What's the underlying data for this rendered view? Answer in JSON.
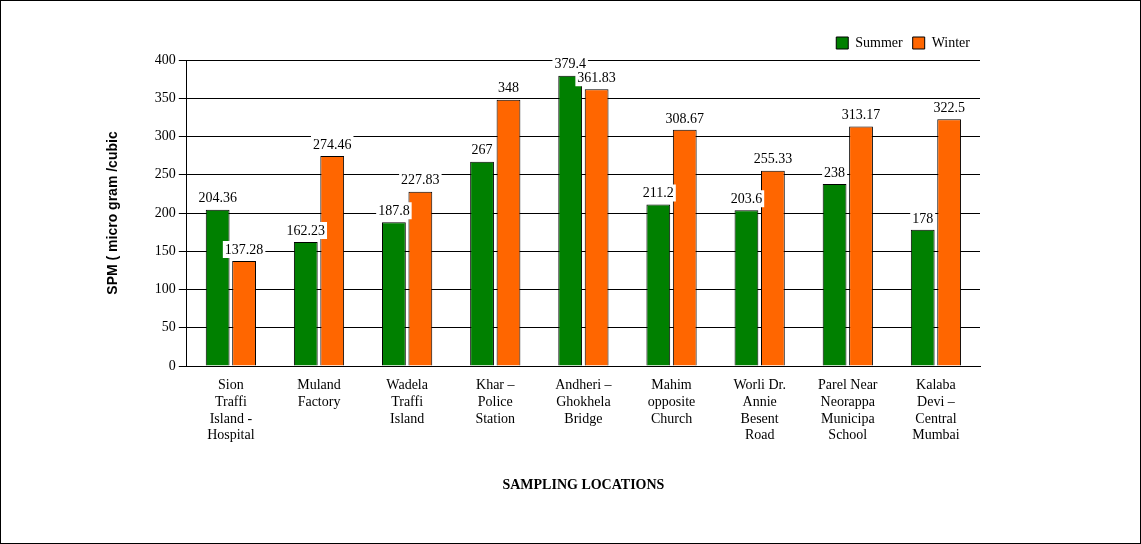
{
  "chart_data": {
    "type": "bar",
    "xlabel": "SAMPLING LOCATIONS",
    "ylabel": "SPM ( micro gram /cubic",
    "categories": [
      "Sion Traffi Island - Hospital",
      "Muland Factory",
      "Wadela Traffi Island",
      "Khar – Police Station",
      "Andheri – Ghokhela Bridge",
      "Mahim opposite Church",
      "Worli Dr. Annie Besent Road",
      "Parel Near Neorappa Municipa School",
      "Kalaba Devi – Central Mumbai"
    ],
    "series": [
      {
        "name": "Summer",
        "color": "#008000",
        "values": [
          204.36,
          162.23,
          187.8,
          267,
          379.4,
          211.2,
          203.6,
          238,
          178
        ]
      },
      {
        "name": "Winter",
        "color": "#ff6600",
        "values": [
          137.28,
          274.46,
          227.83,
          348,
          361.83,
          308.67,
          255.33,
          313.17,
          322.5
        ]
      }
    ],
    "ylim": [
      0,
      400
    ],
    "yticks": [
      0,
      50,
      100,
      150,
      200,
      250,
      300,
      350,
      400
    ],
    "grid": "y",
    "legend": "top right",
    "data_labels": true
  }
}
